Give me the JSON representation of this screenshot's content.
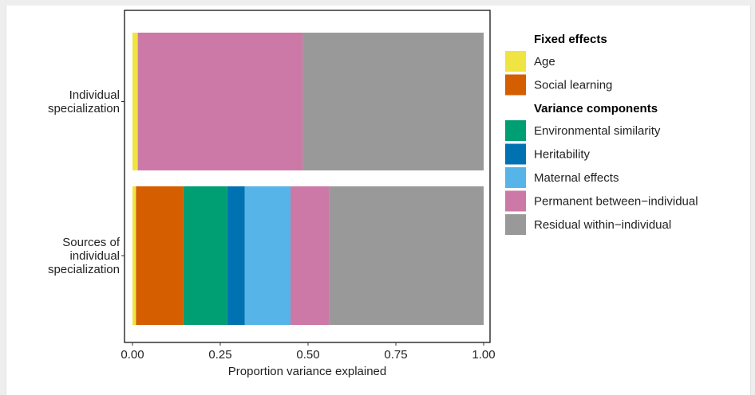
{
  "chart_data": {
    "type": "bar",
    "orientation": "horizontal",
    "stacked": true,
    "xlabel": "Proportion variance explained",
    "ylabel": "",
    "xlim": [
      0,
      1
    ],
    "x_ticks": [
      "0.00",
      "0.25",
      "0.50",
      "0.75",
      "1.00"
    ],
    "x_tick_values": [
      0,
      0.25,
      0.5,
      0.75,
      1.0
    ],
    "grid": false,
    "legend_position": "right",
    "categories": [
      {
        "label_lines": [
          "Individual",
          "specialization"
        ]
      },
      {
        "label_lines": [
          "Sources of",
          "individual",
          "specialization"
        ]
      }
    ],
    "series": [
      {
        "name": "Age",
        "color": "#F0E442",
        "values": [
          0.015,
          0.01
        ]
      },
      {
        "name": "Social learning",
        "color": "#D55E00",
        "values": [
          0.0,
          0.135
        ]
      },
      {
        "name": "Environmental similarity",
        "color": "#009E73",
        "values": [
          0.0,
          0.125
        ]
      },
      {
        "name": "Heritability",
        "color": "#0072B2",
        "values": [
          0.0,
          0.05
        ]
      },
      {
        "name": "Maternal effects",
        "color": "#56B4E9",
        "values": [
          0.0,
          0.13
        ]
      },
      {
        "name": "Permanent between−individual",
        "color": "#CC79A7",
        "values": [
          0.47,
          0.11
        ]
      },
      {
        "name": "Residual within−individual",
        "color": "#999999",
        "values": [
          0.515,
          0.44
        ]
      }
    ],
    "legend_groups": [
      {
        "title": "Fixed effects",
        "series": [
          0,
          1
        ]
      },
      {
        "title": "Variance components",
        "series": [
          2,
          3,
          4,
          5,
          6
        ]
      }
    ]
  }
}
